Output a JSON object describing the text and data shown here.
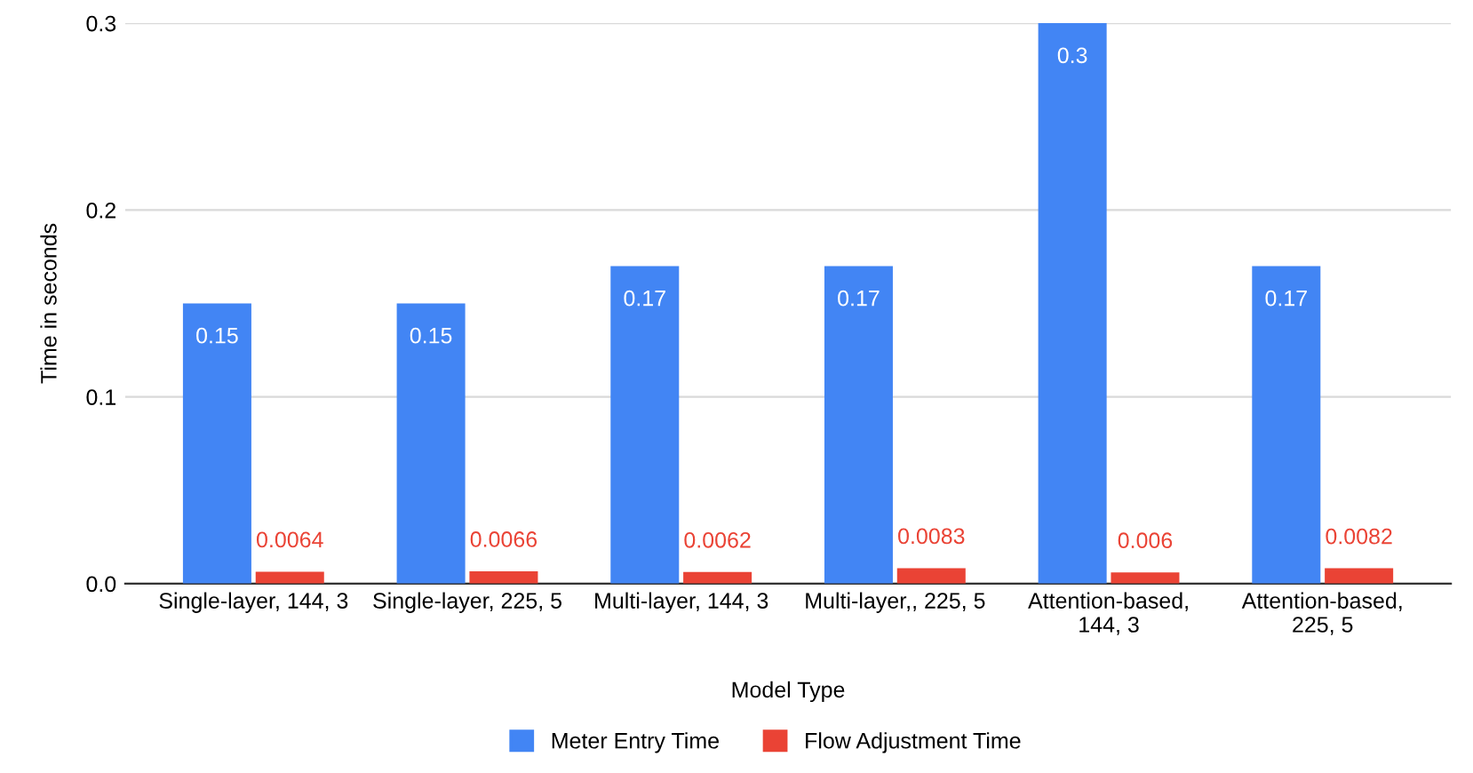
{
  "chart_data": {
    "type": "bar",
    "xlabel": "Model Type",
    "ylabel": "Time in seconds",
    "categories": [
      "Single-layer, 144, 3",
      "Single-layer, 225, 5",
      "Multi-layer, 144, 3",
      "Multi-layer,, 225, 5",
      "Attention-based,\n144, 3",
      "Attention-based,\n225, 5"
    ],
    "series": [
      {
        "name": "Meter Entry Time",
        "color": "#4285f4",
        "values": [
          0.15,
          0.15,
          0.17,
          0.17,
          0.3,
          0.17
        ]
      },
      {
        "name": "Flow Adjustment Time",
        "color": "#ea4335",
        "values": [
          0.0064,
          0.0066,
          0.0062,
          0.0083,
          0.006,
          0.0082
        ]
      }
    ],
    "ylim": [
      0,
      0.3
    ],
    "yticks": [
      {
        "value": 0,
        "label": "0.0"
      },
      0.1,
      0.2,
      0.3
    ],
    "grid": "y",
    "legend": "bottom",
    "data_labels": true
  }
}
